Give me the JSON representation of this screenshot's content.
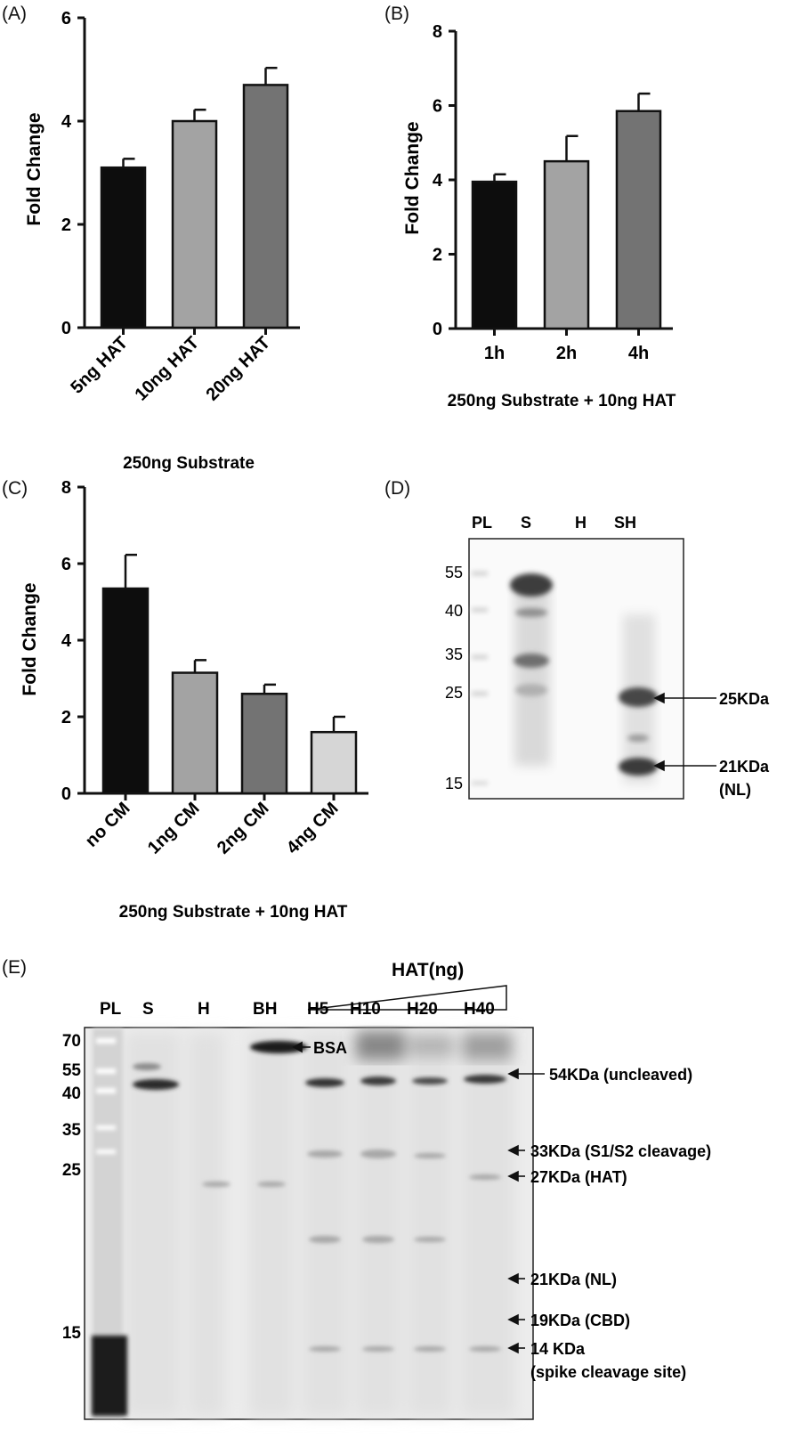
{
  "panels": {
    "A": "(A)",
    "B": "(B)",
    "C": "(C)",
    "D": "(D)",
    "E": "(E)"
  },
  "chart_data": [
    {
      "id": "A",
      "type": "bar",
      "categories": [
        "5ng HAT",
        "10ng HAT",
        "20ng HAT"
      ],
      "values": [
        3.1,
        4.0,
        4.7
      ],
      "errors": [
        0.17,
        0.22,
        0.33
      ],
      "colors": [
        "#0d0d0d",
        "#a3a3a3",
        "#737373"
      ],
      "ylabel": "Fold  Change",
      "xlabel": "250ng Substrate",
      "ylim": [
        0,
        6
      ],
      "yticks": [
        0,
        2,
        4,
        6
      ]
    },
    {
      "id": "B",
      "type": "bar",
      "categories": [
        "1h",
        "2h",
        "4h"
      ],
      "values": [
        3.95,
        4.5,
        5.85
      ],
      "errors": [
        0.2,
        0.68,
        0.47
      ],
      "colors": [
        "#0d0d0d",
        "#a3a3a3",
        "#737373"
      ],
      "ylabel": "Fold  Change",
      "xlabel": "250ng Substrate + 10ng HAT",
      "ylim": [
        0,
        8
      ],
      "yticks": [
        0,
        2,
        4,
        6,
        8
      ]
    },
    {
      "id": "C",
      "type": "bar",
      "categories": [
        "no CM",
        "1ng CM",
        "2ng CM",
        "4ng CM"
      ],
      "values": [
        5.35,
        3.15,
        2.6,
        1.6
      ],
      "errors": [
        0.88,
        0.33,
        0.24,
        0.4
      ],
      "colors": [
        "#0d0d0d",
        "#a3a3a3",
        "#737373",
        "#d6d6d6"
      ],
      "ylabel": "Fold  Change",
      "xlabel": "250ng Substrate + 10ng HAT",
      "ylim": [
        0,
        8
      ],
      "yticks": [
        0,
        2,
        4,
        6,
        8
      ]
    }
  ],
  "blot_d": {
    "lanes": [
      "PL",
      "S",
      "H",
      "SH"
    ],
    "markers": [
      "55",
      "40",
      "35",
      "25",
      "15"
    ],
    "annotations": [
      "25KDa",
      "21KDa",
      "(NL)"
    ]
  },
  "blot_e": {
    "gradient_label": "HAT(ng)",
    "lanes": [
      "PL",
      "S",
      "H",
      "BH",
      "H5",
      "H10",
      "H20",
      "H40"
    ],
    "markers": [
      "70",
      "55",
      "40",
      "35",
      "25",
      "15"
    ],
    "bsa_label": "BSA",
    "annotations": [
      "54KDa (uncleaved)",
      "33KDa (S1/S2 cleavage)",
      "27KDa (HAT)",
      "21KDa (NL)",
      "19KDa (CBD)",
      "14 KDa",
      "(spike cleavage site)"
    ]
  }
}
